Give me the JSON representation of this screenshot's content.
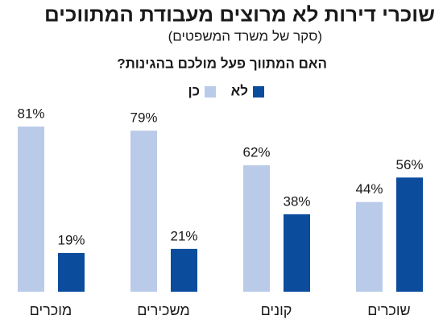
{
  "chart_data": {
    "type": "bar",
    "title": "שוכרי דירות לא מרוצים מעבודת המתווכים",
    "subtitle": "(סקר של משרד המשפטים)",
    "question": "האם המתווך פעל מולכם בהגינות?",
    "categories": [
      "שוכרים",
      "קונים",
      "משכירים",
      "מוכרים"
    ],
    "series": [
      {
        "name": "כן",
        "color": "#b9cbe9",
        "values": [
          44,
          62,
          79,
          81
        ],
        "value_labels": [
          "44%",
          "62%",
          "79%",
          "81%"
        ]
      },
      {
        "name": "לא",
        "color": "#0b4c9c",
        "values": [
          56,
          38,
          21,
          19
        ],
        "value_labels": [
          "56%",
          "38%",
          "21%",
          "19%"
        ]
      }
    ],
    "ylim": [
      0,
      100
    ]
  }
}
